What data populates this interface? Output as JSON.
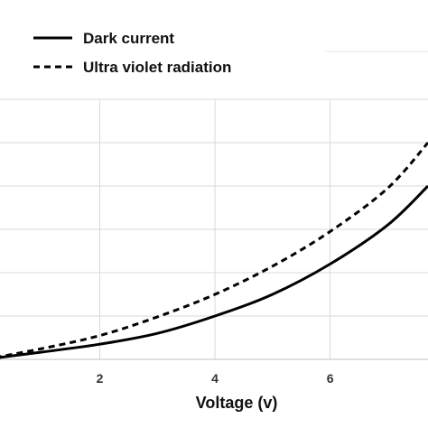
{
  "chart_data": {
    "type": "line",
    "xlabel": "Voltage (v)",
    "ylabel": "",
    "xlim": [
      0,
      7.7
    ],
    "ylim": [
      0,
      6
    ],
    "x_ticks": [
      2,
      4,
      6
    ],
    "x_tick_labels": [
      "2",
      "4",
      "6"
    ],
    "grid": true,
    "legend_position": "top-left",
    "series": [
      {
        "name": "Dark current",
        "style": "solid",
        "color": "#000000",
        "x": [
          0,
          1,
          2,
          3,
          4,
          5,
          6,
          7,
          7.7
        ],
        "y": [
          0,
          0.17,
          0.35,
          0.6,
          1.0,
          1.5,
          2.2,
          3.1,
          4.0
        ]
      },
      {
        "name": "Ultra violet radiation",
        "style": "dashed",
        "color": "#000000",
        "x": [
          0,
          1,
          2,
          3,
          4,
          5,
          6,
          7,
          7.7
        ],
        "y": [
          0,
          0.25,
          0.55,
          0.98,
          1.5,
          2.15,
          2.95,
          3.95,
          5.0
        ]
      }
    ]
  }
}
